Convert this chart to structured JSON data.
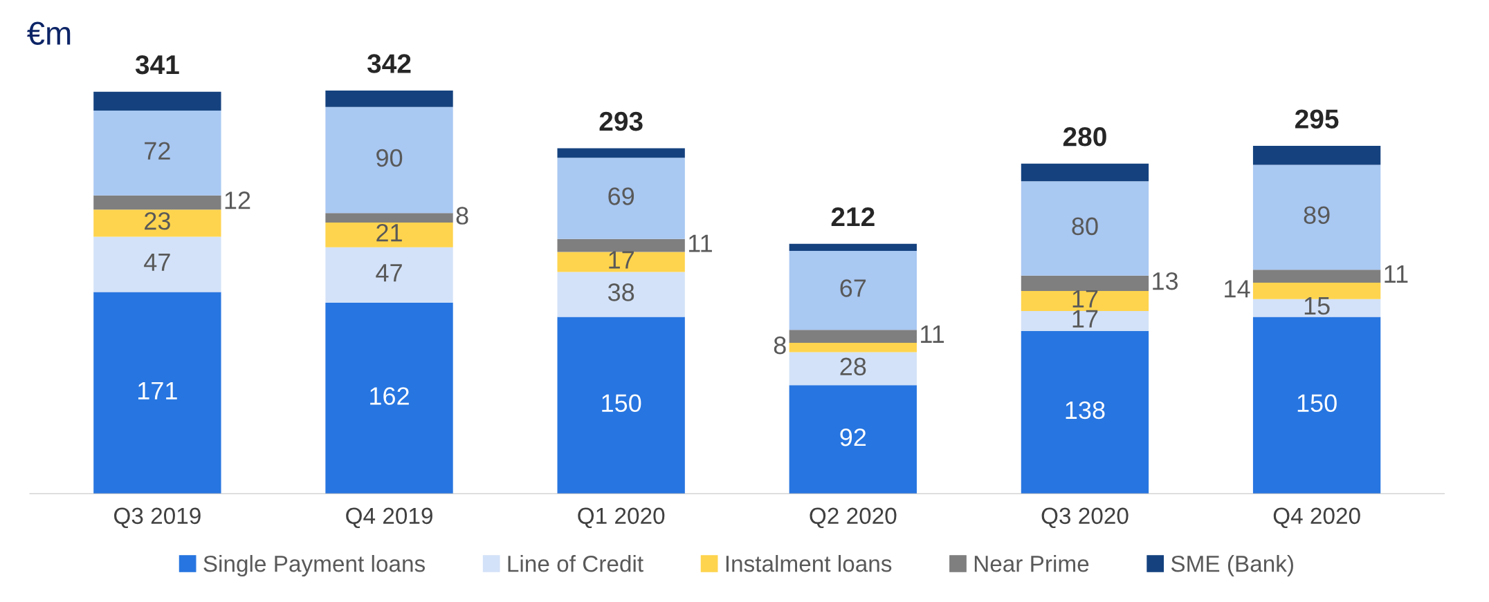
{
  "chart_data": {
    "type": "bar",
    "stacked": true,
    "ylabel": "€m",
    "categories": [
      "Q3 2019",
      "Q4 2019",
      "Q1 2020",
      "Q2 2020",
      "Q3 2020",
      "Q4 2020"
    ],
    "series": [
      {
        "name": "Single Payment loans",
        "color": "#2775e0",
        "values": [
          171,
          162,
          150,
          92,
          138,
          150
        ],
        "value_labels": [
          "171",
          "162",
          "150",
          "92",
          "138",
          "150"
        ]
      },
      {
        "name": "Line of Credit",
        "color": "#d3e2f8",
        "values": [
          47,
          47,
          38,
          28,
          17,
          15
        ],
        "value_labels": [
          "47",
          "47",
          "38",
          "28",
          "17",
          "15"
        ]
      },
      {
        "name": "Instalment loans",
        "color": "#fed44e",
        "values": [
          23,
          21,
          17,
          8,
          17,
          14
        ],
        "value_labels": [
          "23",
          "21",
          "17",
          "8",
          "17",
          "14"
        ]
      },
      {
        "name": "Near Prime",
        "color": "#7f7f7f",
        "values": [
          12,
          8,
          11,
          11,
          13,
          11
        ],
        "value_labels": [
          "12",
          "8",
          "11",
          "11",
          "13",
          "11"
        ]
      },
      {
        "color": "#a9c8f2",
        "values": [
          72,
          90,
          69,
          67,
          80,
          89
        ],
        "value_labels": [
          "72",
          "90",
          "69",
          "67",
          "80",
          "89"
        ]
      },
      {
        "name": "SME (Bank)",
        "color": "#15427f",
        "values": [
          16,
          14,
          8,
          6,
          15,
          16
        ],
        "value_labels": [
          null,
          null,
          null,
          null,
          null,
          null
        ]
      }
    ],
    "totals": [
      "341",
      "342",
      "293",
      "212",
      "280",
      "295"
    ],
    "legend": "bottom",
    "grid": false
  }
}
